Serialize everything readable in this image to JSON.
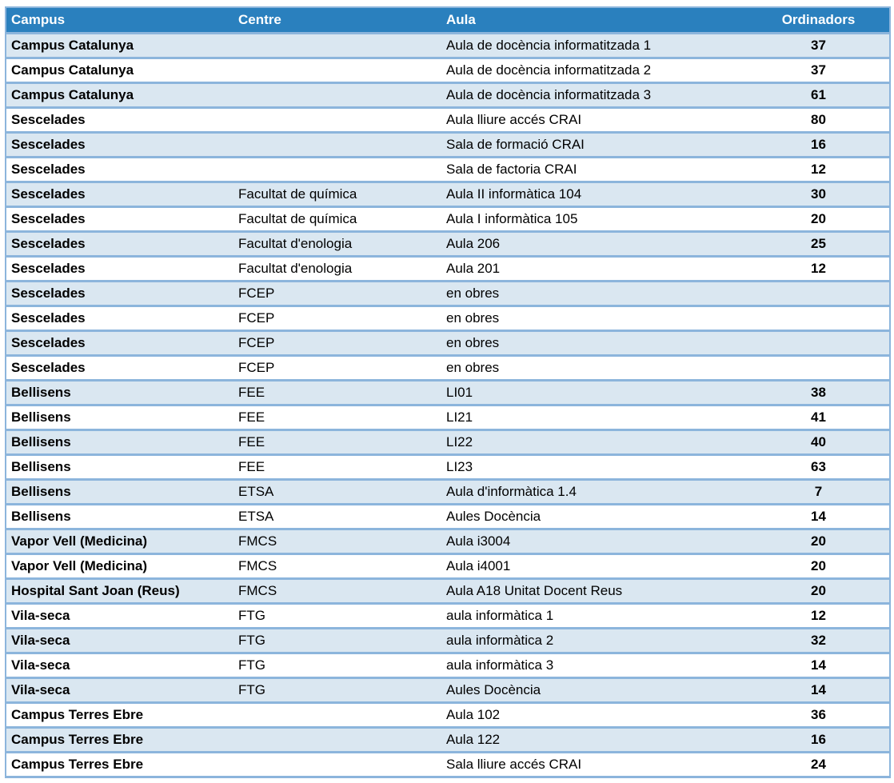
{
  "colors": {
    "header_bg": "#2A80BE",
    "header_text": "#FFFFFF",
    "band_bg": "#DAE7F1",
    "border": "#8CB5DC",
    "cell_text": "#000000"
  },
  "table": {
    "columns": [
      {
        "key": "campus",
        "label": "Campus"
      },
      {
        "key": "centre",
        "label": "Centre"
      },
      {
        "key": "aula",
        "label": "Aula"
      },
      {
        "key": "ordinadors",
        "label": "Ordinadors"
      }
    ],
    "rows": [
      {
        "campus": "Campus Catalunya",
        "centre": "",
        "aula": "Aula de docència informatitzada 1",
        "ordinadors": "37"
      },
      {
        "campus": "Campus Catalunya",
        "centre": "",
        "aula": "Aula de docència informatitzada 2",
        "ordinadors": "37"
      },
      {
        "campus": "Campus Catalunya",
        "centre": "",
        "aula": "Aula de docència informatitzada 3",
        "ordinadors": "61"
      },
      {
        "campus": "Sescelades",
        "centre": "",
        "aula": "Aula lliure accés CRAI",
        "ordinadors": "80"
      },
      {
        "campus": "Sescelades",
        "centre": "",
        "aula": "Sala de formació CRAI",
        "ordinadors": "16"
      },
      {
        "campus": "Sescelades",
        "centre": "",
        "aula": "Sala de factoria CRAI",
        "ordinadors": "12"
      },
      {
        "campus": "Sescelades",
        "centre": "Facultat de química",
        "aula": "Aula II informàtica 104",
        "ordinadors": "30"
      },
      {
        "campus": "Sescelades",
        "centre": "Facultat de química",
        "aula": "Aula I informàtica 105",
        "ordinadors": "20"
      },
      {
        "campus": "Sescelades",
        "centre": "Facultat d'enologia",
        "aula": "Aula 206",
        "ordinadors": "25"
      },
      {
        "campus": "Sescelades",
        "centre": "Facultat d'enologia",
        "aula": "Aula 201",
        "ordinadors": "12"
      },
      {
        "campus": "Sescelades",
        "centre": "FCEP",
        "aula": "en obres",
        "ordinadors": ""
      },
      {
        "campus": "Sescelades",
        "centre": "FCEP",
        "aula": "en obres",
        "ordinadors": ""
      },
      {
        "campus": "Sescelades",
        "centre": "FCEP",
        "aula": "en obres",
        "ordinadors": ""
      },
      {
        "campus": "Sescelades",
        "centre": "FCEP",
        "aula": "en obres",
        "ordinadors": ""
      },
      {
        "campus": "Bellisens",
        "centre": "FEE",
        "aula": "LI01",
        "ordinadors": "38"
      },
      {
        "campus": "Bellisens",
        "centre": "FEE",
        "aula": "LI21",
        "ordinadors": "41"
      },
      {
        "campus": "Bellisens",
        "centre": "FEE",
        "aula": "LI22",
        "ordinadors": "40"
      },
      {
        "campus": "Bellisens",
        "centre": "FEE",
        "aula": "LI23",
        "ordinadors": "63"
      },
      {
        "campus": "Bellisens",
        "centre": "ETSA",
        "aula": "Aula d'informàtica 1.4",
        "ordinadors": "7"
      },
      {
        "campus": "Bellisens",
        "centre": "ETSA",
        "aula": "Aules Docència",
        "ordinadors": "14"
      },
      {
        "campus": "Vapor Vell (Medicina)",
        "centre": "FMCS",
        "aula": "Aula i3004",
        "ordinadors": "20"
      },
      {
        "campus": "Vapor Vell (Medicina)",
        "centre": "FMCS",
        "aula": "Aula i4001",
        "ordinadors": "20"
      },
      {
        "campus": "Hospital Sant Joan (Reus)",
        "centre": "FMCS",
        "aula": "Aula A18 Unitat Docent Reus",
        "ordinadors": "20"
      },
      {
        "campus": "Vila-seca",
        "centre": "FTG",
        "aula": "aula informàtica 1",
        "ordinadors": "12"
      },
      {
        "campus": "Vila-seca",
        "centre": "FTG",
        "aula": "aula informàtica 2",
        "ordinadors": "32"
      },
      {
        "campus": "Vila-seca",
        "centre": "FTG",
        "aula": "aula informàtica 3",
        "ordinadors": "14"
      },
      {
        "campus": "Vila-seca",
        "centre": "FTG",
        "aula": "Aules Docència",
        "ordinadors": "14"
      },
      {
        "campus": "Campus Terres Ebre",
        "centre": "",
        "aula": "Aula 102",
        "ordinadors": "36"
      },
      {
        "campus": "Campus Terres Ebre",
        "centre": "",
        "aula": "Aula 122",
        "ordinadors": "16"
      },
      {
        "campus": "Campus Terres Ebre",
        "centre": "",
        "aula": "Sala lliure accés CRAI",
        "ordinadors": "24"
      }
    ]
  }
}
